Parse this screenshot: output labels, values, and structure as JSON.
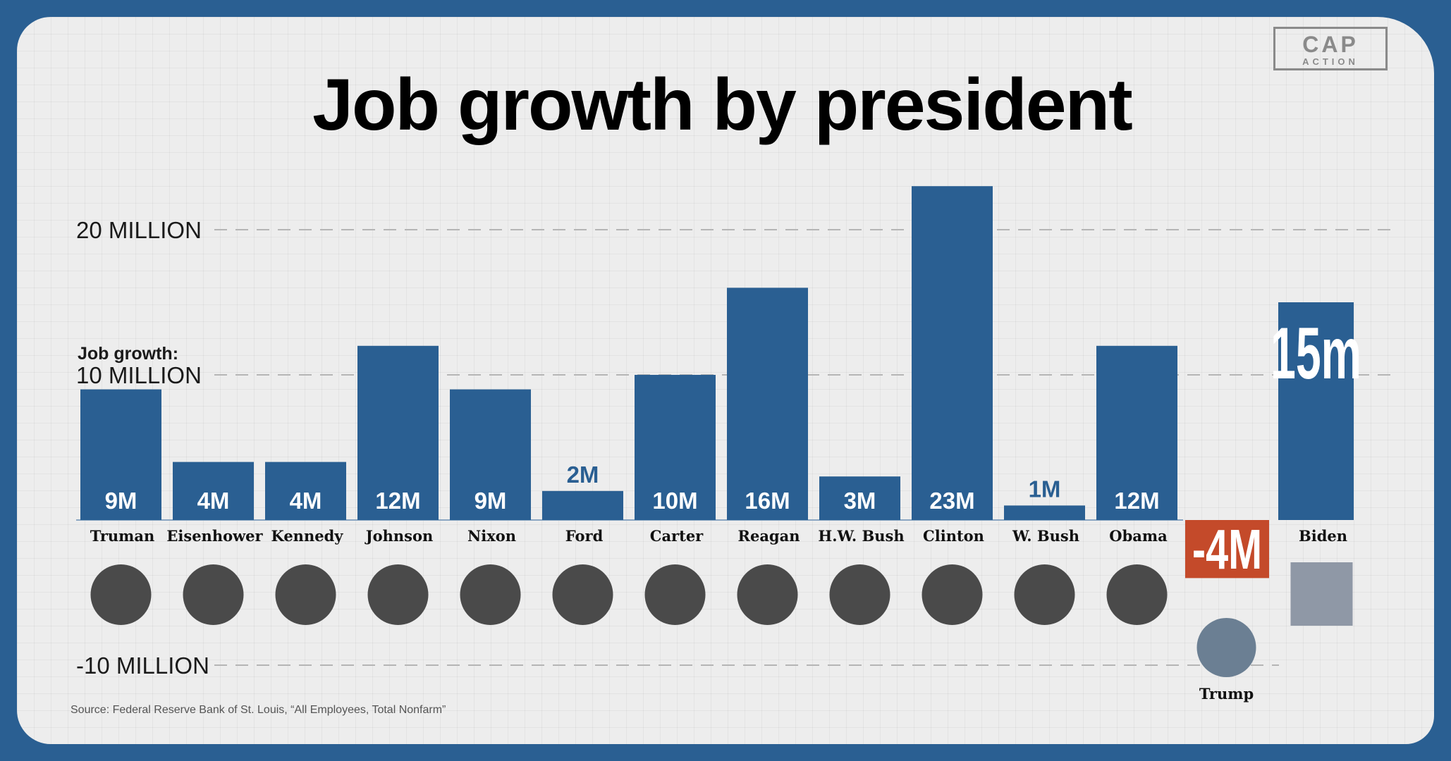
{
  "header": {
    "title": "Job growth by president"
  },
  "logo": {
    "line1": "CAP",
    "line2": "ACTION"
  },
  "source": "Source: Federal Reserve Bank of St. Louis, “All Employees, Total Nonfarm”",
  "colors": {
    "bar": "#2a5f92",
    "negative": "#c44a2a",
    "grid": "#b5b5b5"
  },
  "chart_data": {
    "type": "bar",
    "title": "Job growth by president",
    "ylabel_prefix": "Job growth:",
    "ylim": [
      -10,
      23
    ],
    "ytick_values": [
      20,
      10,
      -10
    ],
    "ytick_labels": [
      "20 MILLION",
      "10 MILLION",
      "-10 MILLION"
    ],
    "categories": [
      "Truman",
      "Eisenhower",
      "Kennedy",
      "Johnson",
      "Nixon",
      "Ford",
      "Carter",
      "Reagan",
      "H.W. Bush",
      "Clinton",
      "W. Bush",
      "Obama",
      "Trump",
      "Biden"
    ],
    "values": [
      9,
      4,
      4,
      12,
      9,
      2,
      10,
      16,
      3,
      23,
      1,
      12,
      -4,
      15
    ],
    "data_labels": [
      "9M",
      "4M",
      "4M",
      "12M",
      "9M",
      "2M",
      "10M",
      "16M",
      "3M",
      "23M",
      "1M",
      "12M",
      "-4M",
      "15m"
    ]
  }
}
